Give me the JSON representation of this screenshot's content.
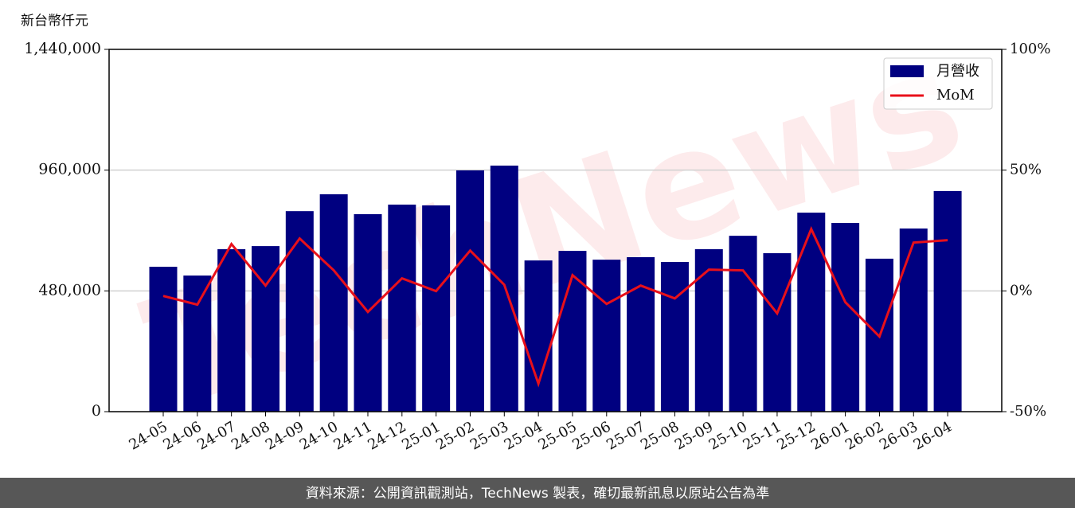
{
  "chart_data": {
    "type": "bar-line",
    "y_axis_label": "新台幣仟元",
    "watermark": "TechNews",
    "footer": "資料來源：公開資訊觀測站，TechNews 製表，確切最新訊息以原站公告為準",
    "categories": [
      "24-05",
      "24-06",
      "24-07",
      "24-08",
      "24-09",
      "24-10",
      "24-11",
      "24-12",
      "25-01",
      "25-02",
      "25-03",
      "25-04",
      "25-05",
      "25-06",
      "25-07",
      "25-08",
      "25-09",
      "25-10",
      "25-11",
      "25-12",
      "26-01",
      "26-02",
      "26-03",
      "26-04"
    ],
    "series": [
      {
        "name": "月營收",
        "color": "#000080",
        "values": [
          576000,
          541000,
          646000,
          658000,
          797000,
          864000,
          785000,
          823000,
          820000,
          959000,
          978000,
          601000,
          639000,
          604000,
          614000,
          595000,
          646000,
          699000,
          630000,
          791000,
          750000,
          608000,
          728000,
          877000
        ]
      },
      {
        "name": "MoM",
        "color": "#e8101a",
        "axis": "y2",
        "values": [
          -2.1,
          -5.7,
          19.4,
          2.2,
          21.7,
          8.5,
          -8.7,
          5.2,
          -0.1,
          16.7,
          2.5,
          -38.4,
          6.5,
          -5.4,
          2.2,
          -3.1,
          8.8,
          8.5,
          -9.3,
          25.6,
          -4.7,
          -18.9,
          20.0,
          21.0
        ]
      }
    ],
    "ylim": [
      0,
      1440000
    ],
    "yticks": [
      0,
      {
        "value": 480000,
        "label": "480,000"
      },
      {
        "value": 960000,
        "label": "960,000"
      },
      {
        "value": 1440000,
        "label": "1,440,000"
      }
    ],
    "y2lim": [
      -50,
      100
    ],
    "y2ticks": [
      {
        "value": -50,
        "label": "-50%"
      },
      {
        "value": 0,
        "label": "0%"
      },
      {
        "value": 50,
        "label": "50%"
      },
      {
        "value": 100,
        "label": "100%"
      }
    ],
    "grid": true,
    "legend": "upper right"
  }
}
